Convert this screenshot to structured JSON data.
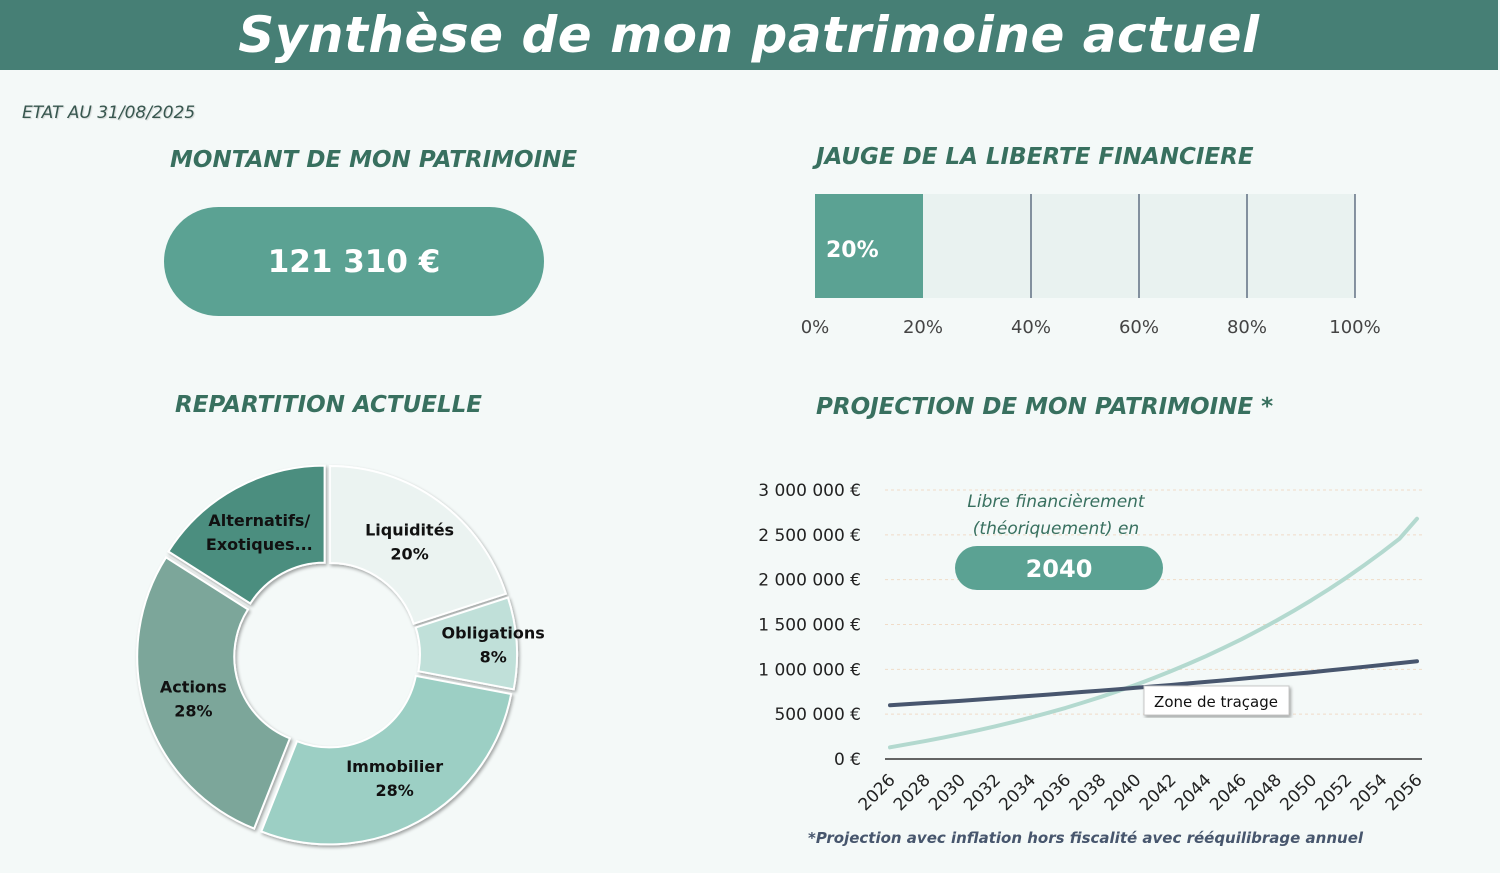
{
  "header": {
    "title": "Synthèse de mon patrimoine actuel"
  },
  "date_label": "ETAT AU 31/08/2025",
  "patrimoine": {
    "title": "MONTANT DE MON PATRIMOINE",
    "amount": "121 310 €"
  },
  "gauge": {
    "title": "JAUGE DE LA LIBERTE FINANCIERE",
    "value_label": "20%",
    "value_pct": 20,
    "ticks": [
      "0%",
      "20%",
      "40%",
      "60%",
      "80%",
      "100%"
    ]
  },
  "repartition": {
    "title": "REPARTITION ACTUELLE"
  },
  "projection": {
    "title": "PROJECTION DE MON PATRIMOINE *",
    "free_label_line1": "Libre financièrement",
    "free_label_line2": "(théoriquement) en",
    "free_year": "2040",
    "tooltip": "Zone de traçage",
    "footnote": "*Projection avec inflation hors fiscalité avec rééquilibrage annuel"
  },
  "chart_data": [
    {
      "type": "pie",
      "title": "REPARTITION ACTUELLE",
      "slices": [
        {
          "label": "Liquidités",
          "value": 20,
          "value_label": "20%",
          "color": "#ebf3f1"
        },
        {
          "label": "Obligations",
          "value": 8,
          "value_label": "8%",
          "color": "#c0e0d9"
        },
        {
          "label": "Immobilier",
          "value": 28,
          "value_label": "28%",
          "color": "#9ccfc4"
        },
        {
          "label": "Actions",
          "value": 28,
          "value_label": "28%",
          "color": "#7ba69a"
        },
        {
          "label": "Alternatifs/ Exotiques...",
          "value": 16,
          "value_label": "",
          "color": "#4c8e7f"
        }
      ]
    },
    {
      "type": "line",
      "title": "PROJECTION DE MON PATRIMOINE *",
      "xlabel": "",
      "ylabel": "",
      "x": [
        2026,
        2027,
        2028,
        2029,
        2030,
        2031,
        2032,
        2033,
        2034,
        2035,
        2036,
        2037,
        2038,
        2039,
        2040,
        2041,
        2042,
        2043,
        2044,
        2045,
        2046,
        2047,
        2048,
        2049,
        2050,
        2051,
        2052,
        2053,
        2054,
        2055,
        2056
      ],
      "x_tick_labels": [
        "2026",
        "2028",
        "2030",
        "2032",
        "2034",
        "2036",
        "2038",
        "2040",
        "2042",
        "2044",
        "2046",
        "2048",
        "2050",
        "2052",
        "2054",
        "2056"
      ],
      "ylim": [
        0,
        3000000
      ],
      "y_tick_labels": [
        "0 €",
        "500 000 €",
        "1 000 000 €",
        "1 500 000 €",
        "2 000 000 €",
        "2 500 000 €",
        "3 000 000 €"
      ],
      "series": [
        {
          "color": "#b3d9cf",
          "values": [
            130000,
            165000,
            200000,
            238000,
            278000,
            320000,
            365000,
            412000,
            462000,
            515000,
            570000,
            630000,
            692000,
            758000,
            828000,
            902000,
            980000,
            1062000,
            1148000,
            1240000,
            1335000,
            1437000,
            1543000,
            1655000,
            1772000,
            1895000,
            2025000,
            2162000,
            2305000,
            2456000,
            2680000
          ]
        },
        {
          "color": "#48566e",
          "values": [
            600000,
            612000,
            624000,
            636000,
            648000,
            662000,
            676000,
            690000,
            704000,
            718000,
            733000,
            748000,
            763000,
            778000,
            794000,
            810000,
            826000,
            843000,
            860000,
            877000,
            895000,
            913000,
            931000,
            949000,
            968000,
            988000,
            1008000,
            1028000,
            1048000,
            1069000,
            1090000
          ]
        }
      ],
      "grid": true
    }
  ]
}
